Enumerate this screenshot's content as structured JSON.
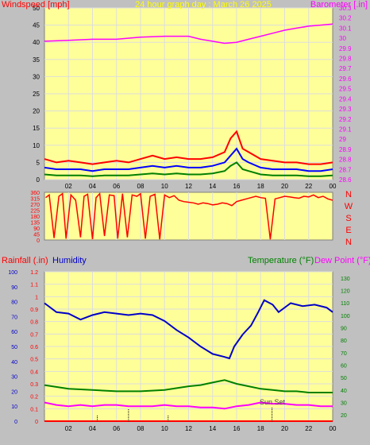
{
  "header": {
    "title": "24 hour graph day : March 26 2025",
    "left_label": "Windspeed [mph]",
    "right_label": "Barometer [.in]"
  },
  "colors": {
    "panel_bg": "#ffff99",
    "outer_bg": "#c0c0c0",
    "grid": "#dddddd",
    "windspeed": "#ff0000",
    "windgust": "#0000ff",
    "windavg": "#008000",
    "barometer": "#ff00ff",
    "direction": "#ff0000",
    "humidity": "#0000c8",
    "temperature": "#008000",
    "dewpoint": "#ff00ff",
    "rainfall": "#ff0000"
  },
  "compass_labels": [
    "N",
    "W",
    "S",
    "E",
    "N"
  ],
  "mid_labels": {
    "rainfall": "Rainfall (.in)",
    "humidity": "Humidity",
    "temperature": "Temperature (°F)",
    "dewpoint": "Dew Point (°F)"
  },
  "annotation": {
    "sunset": "Sun Set"
  },
  "chart_data": [
    {
      "type": "line",
      "name": "wind_barometer",
      "x_ticks": [
        "02",
        "04",
        "06",
        "08",
        "10",
        "12",
        "14",
        "16",
        "18",
        "20",
        "22",
        "00"
      ],
      "x_range_hours": [
        0,
        24
      ],
      "y_left_range": [
        0,
        50
      ],
      "y_left_ticks": [
        "0",
        "5",
        "10",
        "15",
        "20",
        "25",
        "30",
        "35",
        "40",
        "45",
        "50"
      ],
      "y_right_range": [
        28.6,
        30.3
      ],
      "y_right_ticks": [
        "28.6",
        "28.7",
        "28.8",
        "28.9",
        "29",
        "29.1",
        "29.2",
        "29.3",
        "29.4",
        "29.5",
        "29.6",
        "29.7",
        "29.8",
        "29.9",
        "30",
        "30.1",
        "30.2",
        "30.3"
      ],
      "series": [
        {
          "name": "Windspeed",
          "key": "windspeed",
          "axis": "left",
          "x": [
            0,
            1,
            2,
            3,
            4,
            5,
            6,
            7,
            8,
            9,
            10,
            11,
            12,
            13,
            14,
            15,
            15.5,
            16,
            16.5,
            17,
            18,
            19,
            20,
            21,
            22,
            23,
            24
          ],
          "y": [
            6,
            5,
            5.5,
            5,
            4.5,
            5,
            5.5,
            5,
            6,
            7,
            6,
            6.5,
            6,
            6,
            6.5,
            8,
            12,
            14,
            9,
            8,
            6,
            5.5,
            5,
            5,
            4.5,
            4.5,
            5
          ]
        },
        {
          "name": "Wind Gust",
          "key": "windgust",
          "axis": "left",
          "x": [
            0,
            1,
            2,
            3,
            4,
            5,
            6,
            7,
            8,
            9,
            10,
            11,
            12,
            13,
            14,
            15,
            15.5,
            16,
            16.5,
            17,
            18,
            19,
            20,
            21,
            22,
            23,
            24
          ],
          "y": [
            3.5,
            3,
            3,
            3,
            2.5,
            3,
            3,
            3,
            3.5,
            4,
            3.5,
            4,
            3.5,
            3.5,
            4,
            5,
            7,
            9,
            6,
            5,
            3.5,
            3,
            3,
            3,
            2.5,
            2.5,
            3
          ]
        },
        {
          "name": "Wind Avg",
          "key": "windavg",
          "axis": "left",
          "x": [
            0,
            1,
            2,
            3,
            4,
            5,
            6,
            7,
            8,
            9,
            10,
            11,
            12,
            13,
            14,
            15,
            15.5,
            16,
            16.5,
            17,
            18,
            19,
            20,
            21,
            22,
            23,
            24
          ],
          "y": [
            1.5,
            1.2,
            1.2,
            1.2,
            1,
            1.2,
            1.2,
            1.2,
            1.5,
            1.8,
            1.5,
            1.8,
            1.5,
            1.5,
            1.8,
            2.5,
            4,
            5,
            3,
            2.5,
            1.5,
            1.2,
            1.2,
            1.2,
            1,
            1,
            1.2
          ]
        },
        {
          "name": "Barometer",
          "key": "barometer",
          "axis": "right",
          "x": [
            0,
            2,
            4,
            6,
            8,
            10,
            12,
            13,
            14,
            15,
            16,
            17,
            18,
            19,
            20,
            21,
            22,
            23,
            24
          ],
          "y": [
            29.97,
            29.98,
            29.99,
            29.99,
            30.01,
            30.02,
            30.02,
            29.99,
            29.97,
            29.95,
            29.96,
            29.99,
            30.02,
            30.05,
            30.08,
            30.1,
            30.12,
            30.13,
            30.14
          ]
        }
      ]
    },
    {
      "type": "scatter",
      "name": "wind_direction",
      "x_range_hours": [
        0,
        24
      ],
      "y_range": [
        0,
        360
      ],
      "y_ticks": [
        "0",
        "45",
        "90",
        "135",
        "180",
        "225",
        "270",
        "315",
        "360"
      ],
      "series": [
        {
          "name": "Wind Direction",
          "key": "direction",
          "x": [
            0.1,
            0.4,
            0.8,
            1.2,
            1.5,
            1.8,
            2.2,
            2.6,
            3.0,
            3.3,
            3.6,
            4.0,
            4.3,
            4.6,
            5.0,
            5.4,
            5.8,
            6.1,
            6.5,
            6.9,
            7.3,
            7.7,
            8.0,
            8.4,
            8.8,
            9.2,
            9.6,
            10.0,
            10.4,
            10.8,
            11.2,
            11.6,
            12.0,
            12.4,
            12.8,
            13.2,
            13.6,
            14.0,
            14.4,
            14.8,
            15.2,
            15.6,
            16.0,
            16.4,
            16.8,
            17.2,
            17.6,
            18.0,
            18.4,
            18.8,
            19.2,
            19.6,
            20.0,
            20.4,
            20.8,
            21.2,
            21.6,
            22.0,
            22.4,
            22.8,
            23.2,
            23.6,
            24.0
          ],
          "y": [
            320,
            340,
            15,
            330,
            350,
            10,
            340,
            300,
            20,
            330,
            345,
            5,
            320,
            350,
            30,
            340,
            335,
            10,
            350,
            20,
            340,
            330,
            350,
            10,
            330,
            345,
            5,
            340,
            320,
            335,
            300,
            290,
            285,
            280,
            270,
            280,
            275,
            265,
            270,
            280,
            275,
            260,
            290,
            300,
            310,
            320,
            330,
            320,
            315,
            5,
            310,
            320,
            330,
            325,
            320,
            315,
            330,
            325,
            340,
            320,
            330,
            310,
            300
          ]
        }
      ]
    },
    {
      "type": "line",
      "name": "rain_humidity_temp",
      "x_ticks": [
        "02",
        "04",
        "06",
        "08",
        "10",
        "12",
        "14",
        "16",
        "18",
        "20",
        "22",
        "00"
      ],
      "x_range_hours": [
        0,
        24
      ],
      "y_rain_range": [
        0,
        1.2
      ],
      "y_rain_ticks": [
        "0",
        "0.1",
        "0.2",
        "0.3",
        "0.4",
        "0.5",
        "0.6",
        "0.7",
        "0.8",
        "0.9",
        "1",
        "1.1",
        "1.2"
      ],
      "y_humidity_range": [
        0,
        100
      ],
      "y_humidity_ticks": [
        "0",
        "10",
        "20",
        "30",
        "40",
        "50",
        "60",
        "70",
        "80",
        "90",
        "100"
      ],
      "y_temp_range": [
        15,
        135
      ],
      "y_temp_ticks": [
        "20",
        "30",
        "40",
        "50",
        "60",
        "70",
        "80",
        "90",
        "100",
        "110",
        "120",
        "130"
      ],
      "series": [
        {
          "name": "Humidity",
          "key": "humidity",
          "axis": "humidity",
          "x": [
            0,
            1,
            2,
            3,
            4,
            5,
            6,
            7,
            8,
            9,
            10,
            11,
            12,
            13,
            14,
            15,
            15.4,
            15.8,
            16.5,
            17.2,
            17.8,
            18.3,
            19,
            19.5,
            20.5,
            21.5,
            22.5,
            23.5,
            24
          ],
          "y": [
            79,
            73,
            72,
            68,
            71,
            73,
            72,
            71,
            72,
            71,
            67,
            61,
            56,
            50,
            45,
            43,
            42,
            50,
            58,
            64,
            73,
            81,
            78,
            73,
            79,
            77,
            78,
            76,
            73
          ]
        },
        {
          "name": "Temperature",
          "key": "temperature",
          "axis": "temp",
          "x": [
            0,
            2,
            4,
            6,
            8,
            10,
            12,
            13,
            14,
            15,
            16,
            17,
            18,
            19,
            20,
            21,
            22,
            23,
            24
          ],
          "y": [
            44,
            41,
            40,
            39,
            39,
            40,
            43,
            44,
            46,
            48,
            45,
            43,
            41,
            40,
            39,
            39,
            38,
            38,
            38
          ]
        },
        {
          "name": "Dew Point",
          "key": "dewpoint",
          "axis": "temp",
          "x": [
            0,
            1,
            2,
            3,
            4,
            5,
            6,
            7,
            8,
            9,
            10,
            11,
            12,
            13,
            14,
            15,
            16,
            17,
            18,
            19,
            20,
            21,
            22,
            23,
            24
          ],
          "y": [
            30,
            28,
            27,
            28,
            27,
            28,
            28,
            27,
            27,
            27,
            28,
            27,
            27,
            26,
            26,
            25,
            27,
            28,
            30,
            29,
            29,
            28,
            28,
            27,
            27
          ]
        },
        {
          "name": "Rainfall",
          "key": "rainfall",
          "axis": "rain",
          "x": [
            0,
            24
          ],
          "y": [
            0,
            0
          ]
        }
      ]
    }
  ]
}
